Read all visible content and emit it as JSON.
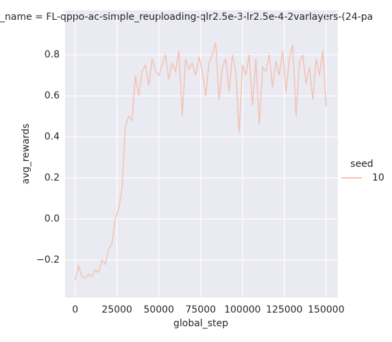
{
  "chart_data": {
    "type": "line",
    "title": "_name = FL-qppo-ac-simple_reuploading-qlr2.5e-3-lr2.5e-4-2varlayers-(24-pa",
    "x_label": "global_step",
    "y_label": "avg_rewards",
    "legend_title": "seed",
    "x": [
      0,
      2000,
      4000,
      6000,
      8000,
      10000,
      12000,
      14000,
      16000,
      18000,
      20000,
      22000,
      24000,
      26000,
      28000,
      30000,
      32000,
      34000,
      36000,
      38000,
      40000,
      42000,
      44000,
      46000,
      48000,
      50000,
      52000,
      54000,
      56000,
      58000,
      60000,
      62000,
      64000,
      66000,
      68000,
      70000,
      72000,
      74000,
      76000,
      78000,
      80000,
      82000,
      84000,
      86000,
      88000,
      90000,
      92000,
      94000,
      96000,
      98000,
      100000,
      102000,
      104000,
      106000,
      108000,
      110000,
      112000,
      114000,
      116000,
      118000,
      120000,
      122000,
      124000,
      126000,
      128000,
      130000,
      132000,
      134000,
      136000,
      138000,
      140000,
      142000,
      144000,
      146000,
      148000,
      150000
    ],
    "series": [
      {
        "name": "10",
        "color": "#f2c4b3",
        "values": [
          -0.3,
          -0.23,
          -0.28,
          -0.29,
          -0.27,
          -0.28,
          -0.25,
          -0.26,
          -0.2,
          -0.22,
          -0.15,
          -0.12,
          0.0,
          0.05,
          0.15,
          0.45,
          0.5,
          0.48,
          0.7,
          0.6,
          0.72,
          0.75,
          0.65,
          0.78,
          0.72,
          0.7,
          0.75,
          0.8,
          0.68,
          0.76,
          0.72,
          0.82,
          0.5,
          0.78,
          0.73,
          0.76,
          0.7,
          0.79,
          0.72,
          0.6,
          0.76,
          0.8,
          0.86,
          0.58,
          0.74,
          0.78,
          0.62,
          0.8,
          0.72,
          0.42,
          0.75,
          0.7,
          0.8,
          0.55,
          0.78,
          0.46,
          0.74,
          0.72,
          0.8,
          0.64,
          0.77,
          0.7,
          0.82,
          0.62,
          0.78,
          0.85,
          0.5,
          0.76,
          0.8,
          0.66,
          0.74,
          0.58,
          0.78,
          0.7,
          0.82,
          0.55
        ]
      }
    ],
    "xlim": [
      -6000,
      157000
    ],
    "xticks": [
      0,
      25000,
      50000,
      75000,
      100000,
      125000,
      150000
    ],
    "ylim": [
      -0.383,
      1.017
    ],
    "yticks": [
      {
        "value": -0.2,
        "label": "−0.2"
      },
      {
        "value": 0,
        "label": "0.0"
      },
      0.2,
      0.4,
      0.6,
      0.8
    ],
    "grid": true,
    "legend": "right"
  }
}
